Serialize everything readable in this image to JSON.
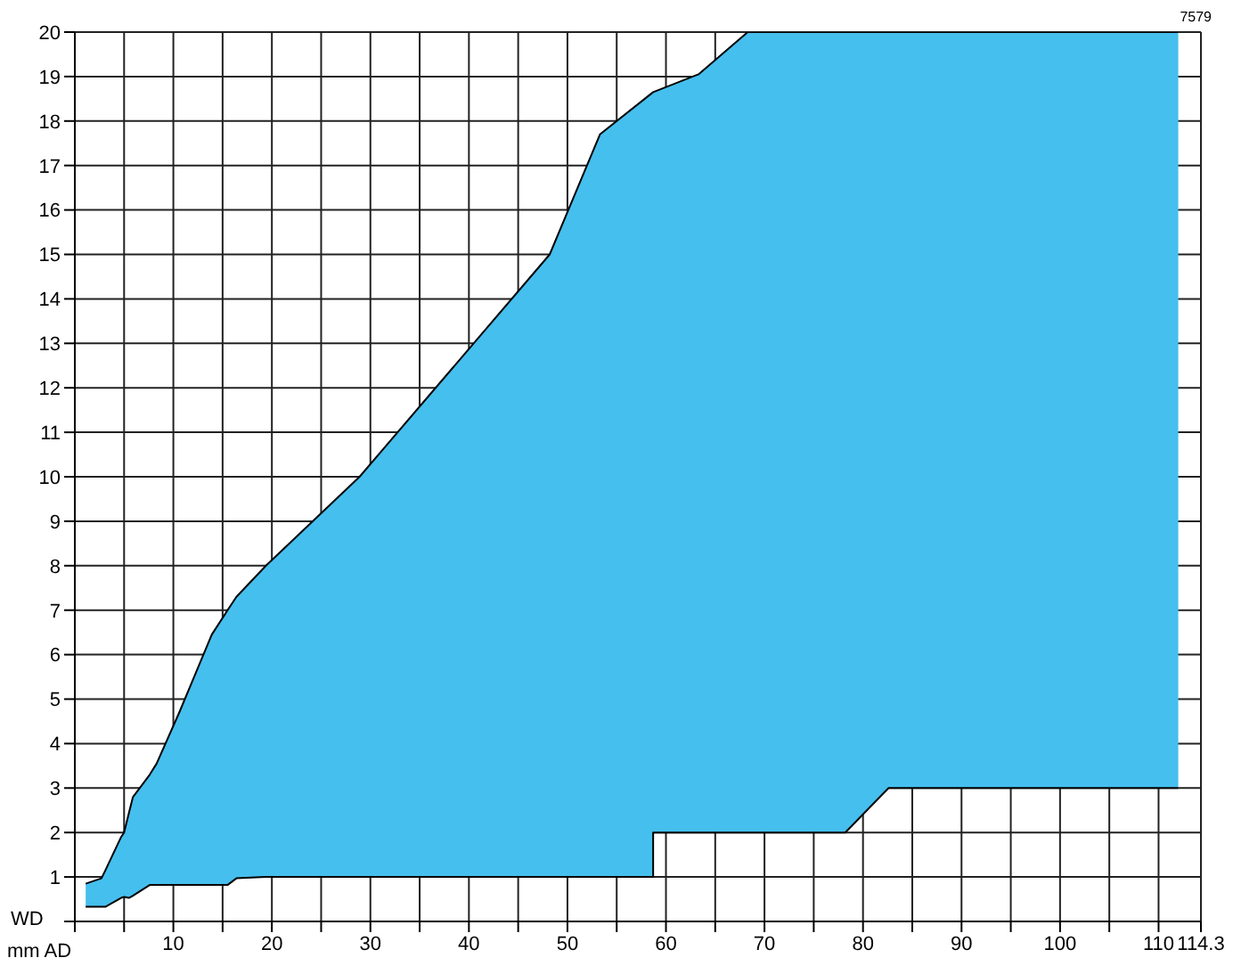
{
  "chart_data": {
    "type": "area",
    "xlabel": "mm AD",
    "ylabel": "WD",
    "annotations": [
      "7579"
    ],
    "x": [
      1.1,
      2.7,
      3.1,
      4.7,
      5.0,
      5.5,
      5.9,
      7.6,
      8.3,
      10.6,
      13.9,
      15.5,
      16.4,
      19.4,
      28.9,
      48.2,
      53.3,
      58.7,
      58.7,
      63.3,
      68.3,
      78.2,
      82.6,
      112
    ],
    "series": [
      {
        "type": "line",
        "color": "#000000",
        "values": [
          0.33,
          0.33,
          0.33,
          0.53,
          0.55,
          0.53,
          0.58,
          0.82,
          0.82,
          0.82,
          0.82,
          0.82,
          0.97,
          1.0,
          1.0,
          1.0,
          1.0,
          1.0,
          2.0,
          2.0,
          2.0,
          2.0,
          3.0,
          3.0
        ]
      },
      {
        "color": "#45bfee",
        "values": [
          0.85,
          0.97,
          1.15,
          1.9,
          2.0,
          2.45,
          2.8,
          3.3,
          3.55,
          4.7,
          6.45,
          7.0,
          7.3,
          8.0,
          10.0,
          15.0,
          17.7,
          18.65,
          18.65,
          19.05,
          20,
          20,
          20,
          20
        ]
      }
    ],
    "xlim": [
      0,
      114.3
    ],
    "xticks": [
      {
        "value": 0,
        "label": null
      },
      {
        "value": 5,
        "label": null
      },
      10,
      {
        "value": 15,
        "label": null
      },
      20,
      {
        "value": 25,
        "label": null
      },
      30,
      {
        "value": 35,
        "label": null
      },
      40,
      {
        "value": 45,
        "label": null
      },
      50,
      {
        "value": 55,
        "label": null
      },
      60,
      {
        "value": 65,
        "label": null
      },
      70,
      {
        "value": 75,
        "label": null
      },
      80,
      {
        "value": 85,
        "label": null
      },
      90,
      {
        "value": 95,
        "label": null
      },
      100,
      {
        "value": 105,
        "label": null
      },
      110,
      114.3
    ],
    "ylim": [
      0,
      20
    ],
    "yticks": [
      {
        "value": 0,
        "label": null
      },
      1,
      2,
      3,
      4,
      5,
      6,
      7,
      8,
      9,
      10,
      11,
      12,
      13,
      14,
      15,
      16,
      17,
      18,
      19,
      20
    ],
    "grid": true
  }
}
